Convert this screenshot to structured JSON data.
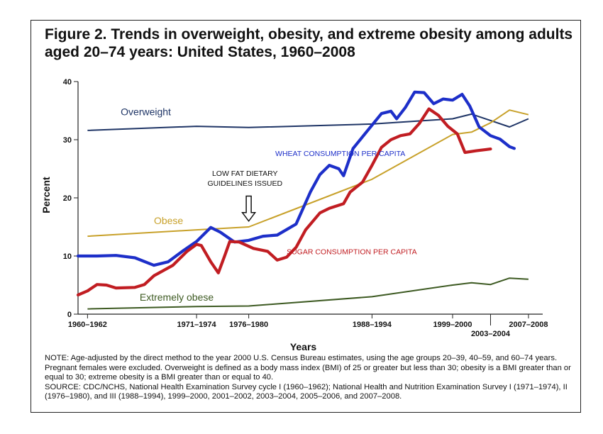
{
  "figure": {
    "title": "Figure 2. Trends in overweight, obesity, and extreme obesity among adults aged 20–74 years: United States, 1960–2008",
    "note": "NOTE: Age-adjusted by the direct method to the year 2000 U.S. Census Bureau estimates, using the age groups 20–39, 40–59, and 60–74 years. Pregnant females were excluded. Overweight is defined as a body mass index (BMI) of 25 or greater but less than 30; obesity is a BMI greater than or equal to 30; extreme obesity is a BMI greater than or equal to 40.",
    "source": "SOURCE: CDC/NCHS, National Health Examination Survey cycle I (1960–1962); National Health and Nutrition Examination Survey I (1971–1974), II (1976–1980), and III (1988–1994), 1999–2000, 2001–2002, 2003–2004, 2005–2006, and 2007–2008."
  },
  "chart_data": {
    "type": "line",
    "title": "Figure 2. Trends in overweight, obesity, and extreme obesity among adults aged 20–74 years: United States, 1960–2008",
    "xlabel": "Years",
    "ylabel": "Percent",
    "ylim": [
      0,
      40
    ],
    "yticks": [
      0,
      10,
      20,
      30,
      40
    ],
    "xlim": [
      1960,
      2009
    ],
    "xticks": [
      {
        "label": "1960–1962",
        "x": 1961
      },
      {
        "label": "1971–1974",
        "x": 1972.5
      },
      {
        "label": "1976–1980",
        "x": 1978
      },
      {
        "label": "1988–1994",
        "x": 1991
      },
      {
        "label": "1999–2000",
        "x": 1999.5
      },
      {
        "label": "2003–2004",
        "x": 2003.5
      },
      {
        "label": "2007–2008",
        "x": 2007.5
      }
    ],
    "grid": false,
    "legend": "none",
    "series": [
      {
        "name": "Overweight",
        "color": "#1f3566",
        "label_at": [
          1964.5,
          34.2
        ],
        "points": [
          [
            1961,
            31.6
          ],
          [
            1972.5,
            32.3
          ],
          [
            1978,
            32.1
          ],
          [
            1991,
            32.7
          ],
          [
            1999.5,
            33.6
          ],
          [
            2001.5,
            34.4
          ],
          [
            2003.5,
            33.3
          ],
          [
            2005.5,
            32.2
          ],
          [
            2007.5,
            33.6
          ]
        ]
      },
      {
        "name": "Obese",
        "color": "#c8a12a",
        "label_at": [
          1968,
          15.5
        ],
        "points": [
          [
            1961,
            13.4
          ],
          [
            1972.5,
            14.5
          ],
          [
            1978,
            15.0
          ],
          [
            1991,
            23.2
          ],
          [
            1999.5,
            30.9
          ],
          [
            2001.5,
            31.3
          ],
          [
            2003.5,
            32.9
          ],
          [
            2005.5,
            35.1
          ],
          [
            2007.5,
            34.3
          ]
        ]
      },
      {
        "name": "Extremely obese",
        "color": "#3d5a22",
        "label_at": [
          1966.5,
          2.3
        ],
        "points": [
          [
            1961,
            0.9
          ],
          [
            1972.5,
            1.3
          ],
          [
            1978,
            1.4
          ],
          [
            1991,
            3.0
          ],
          [
            1999.5,
            5.0
          ],
          [
            2001.5,
            5.4
          ],
          [
            2003.5,
            5.1
          ],
          [
            2005.5,
            6.2
          ],
          [
            2007.5,
            6.0
          ]
        ]
      }
    ],
    "overlays": [
      {
        "name": "WHEAT CONSUMPTION PER CAPITA",
        "color": "#1d2fc9",
        "label_at": [
          1980.8,
          27.2
        ],
        "points": [
          [
            1960,
            10.0
          ],
          [
            1962,
            10.0
          ],
          [
            1964,
            10.1
          ],
          [
            1966,
            9.7
          ],
          [
            1968,
            8.4
          ],
          [
            1969.5,
            9.0
          ],
          [
            1971,
            10.8
          ],
          [
            1972.5,
            12.5
          ],
          [
            1974,
            14.9
          ],
          [
            1975,
            14.1
          ],
          [
            1976.5,
            12.4
          ],
          [
            1978,
            12.7
          ],
          [
            1979.5,
            13.4
          ],
          [
            1981,
            13.6
          ],
          [
            1983,
            15.5
          ],
          [
            1984.5,
            21.0
          ],
          [
            1985.5,
            24.0
          ],
          [
            1986.5,
            25.6
          ],
          [
            1987.5,
            25.0
          ],
          [
            1988,
            23.8
          ],
          [
            1989,
            28.5
          ],
          [
            1990.5,
            31.5
          ],
          [
            1992,
            34.5
          ],
          [
            1993,
            34.9
          ],
          [
            1993.6,
            33.6
          ],
          [
            1994.5,
            35.5
          ],
          [
            1995.5,
            38.2
          ],
          [
            1996.5,
            38.1
          ],
          [
            1997.5,
            36.2
          ],
          [
            1998.5,
            37.0
          ],
          [
            1999.5,
            36.8
          ],
          [
            2000.5,
            37.8
          ],
          [
            2001.3,
            35.8
          ],
          [
            2002.3,
            32.2
          ],
          [
            2003.5,
            30.7
          ],
          [
            2004.5,
            30.1
          ],
          [
            2005.5,
            28.8
          ],
          [
            2006,
            28.5
          ]
        ]
      },
      {
        "name": "SUGAR CONSUMPTION PER CAPITA",
        "color": "#c11d22",
        "label_at": [
          1982,
          10.3
        ],
        "points": [
          [
            1960,
            3.3
          ],
          [
            1961,
            4.0
          ],
          [
            1962,
            5.1
          ],
          [
            1963,
            5.0
          ],
          [
            1964,
            4.5
          ],
          [
            1966,
            4.6
          ],
          [
            1967,
            5.1
          ],
          [
            1968,
            6.6
          ],
          [
            1970,
            8.4
          ],
          [
            1971.5,
            10.8
          ],
          [
            1972.5,
            12.0
          ],
          [
            1973,
            11.8
          ],
          [
            1974,
            9.0
          ],
          [
            1974.8,
            7.1
          ],
          [
            1975.5,
            10.2
          ],
          [
            1976,
            12.5
          ],
          [
            1977,
            12.4
          ],
          [
            1978.5,
            11.3
          ],
          [
            1980,
            10.8
          ],
          [
            1981,
            9.3
          ],
          [
            1982,
            9.8
          ],
          [
            1983,
            11.5
          ],
          [
            1984,
            14.5
          ],
          [
            1985.5,
            17.4
          ],
          [
            1986.5,
            18.2
          ],
          [
            1988,
            19.0
          ],
          [
            1988.7,
            21.0
          ],
          [
            1990,
            22.7
          ],
          [
            1991,
            25.6
          ],
          [
            1992,
            28.7
          ],
          [
            1993,
            30.0
          ],
          [
            1994,
            30.7
          ],
          [
            1995,
            31.0
          ],
          [
            1996,
            32.8
          ],
          [
            1997,
            35.3
          ],
          [
            1998,
            34.2
          ],
          [
            1999,
            32.3
          ],
          [
            2000,
            31.0
          ],
          [
            2000.8,
            27.8
          ],
          [
            2002,
            28.1
          ],
          [
            2003,
            28.3
          ],
          [
            2003.5,
            28.4
          ]
        ]
      }
    ],
    "annotations": [
      {
        "text": "LOW FAT DIETARY",
        "at": [
          1977.6,
          23.8
        ]
      },
      {
        "text": "GUIDELINES ISSUED",
        "at": [
          1977.6,
          22.1
        ]
      }
    ],
    "arrow": {
      "x": 1978,
      "from": 20.3,
      "to": 16.0
    }
  }
}
